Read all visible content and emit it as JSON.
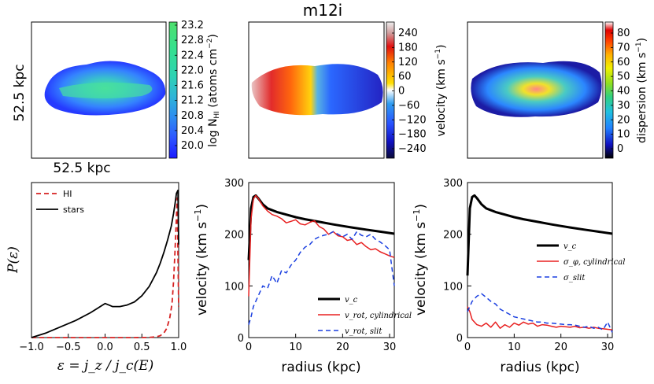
{
  "title": "m12i",
  "maps": {
    "size_label_x": "52.5 kpc",
    "size_label_y": "52.5 kpc",
    "colorbars": [
      {
        "label": "log N_HI (atoms cm^-2)",
        "label_main": "log N",
        "label_sub": "HI",
        "label_rest": " (atoms cm",
        "label_exp": "−2",
        "label_close": ")",
        "ticks": [
          "23.2",
          "22.8",
          "22.4",
          "22.0",
          "21.6",
          "21.2",
          "20.8",
          "20.4",
          "20.0"
        ],
        "colors": [
          "#1a1aff",
          "#2e56ff",
          "#2e8cf0",
          "#2eb4d8",
          "#2ed2b4",
          "#35e08f",
          "#4fe06e",
          "#4dda7a"
        ]
      },
      {
        "label": "velocity (km s^-1)",
        "label_main": "velocity (km s",
        "label_exp": "−1",
        "label_close": ")",
        "ticks": [
          "240",
          "180",
          "120",
          "60",
          "0",
          "−60",
          "−120",
          "−180",
          "−240"
        ],
        "colors": [
          "#0b0b3a",
          "#1010c0",
          "#2850ff",
          "#2e9cf0",
          "#ffffff",
          "#ffd200",
          "#ff8000",
          "#e01010",
          "#d0a0a0",
          "#eeeeee"
        ]
      },
      {
        "label": "dispersion (km s^-1)",
        "label_main": "dispersion (km s",
        "label_exp": "−1",
        "label_close": ")",
        "ticks": [
          "80",
          "70",
          "60",
          "50",
          "40",
          "30",
          "20",
          "10",
          "0"
        ],
        "colors": [
          "#000000",
          "#1010c0",
          "#2080ff",
          "#20c0e0",
          "#30d080",
          "#90e020",
          "#f0f000",
          "#ffb000",
          "#ff4000",
          "#e00000",
          "#ffffff"
        ]
      }
    ]
  },
  "chart_data": [
    {
      "type": "line",
      "title": "",
      "xlabel": "ε = j_z / j_c(E)",
      "ylabel": "P(ε)",
      "xlim": [
        -1.0,
        1.0
      ],
      "ylim": [
        0,
        1.0
      ],
      "xticks": [
        "−1.0",
        "−0.5",
        "0.0",
        "0.5",
        "1.0"
      ],
      "legend": "top-left",
      "series": [
        {
          "name": "HI",
          "color": "#d62020",
          "dash": "6,4",
          "x": [
            -1.0,
            0.4,
            0.6,
            0.7,
            0.75,
            0.8,
            0.84,
            0.88,
            0.91,
            0.93,
            0.95,
            0.97,
            0.98,
            1.0
          ],
          "y": [
            0,
            0,
            0.001,
            0.005,
            0.012,
            0.03,
            0.06,
            0.13,
            0.22,
            0.36,
            0.55,
            0.78,
            0.9,
            0.2
          ]
        },
        {
          "name": "stars",
          "color": "#000000",
          "dash": "",
          "x": [
            -1.0,
            -0.8,
            -0.6,
            -0.4,
            -0.2,
            -0.1,
            0.0,
            0.05,
            0.1,
            0.2,
            0.3,
            0.4,
            0.5,
            0.6,
            0.7,
            0.75,
            0.8,
            0.85,
            0.9,
            0.93,
            0.95,
            0.97,
            0.99,
            1.0
          ],
          "y": [
            0,
            0.03,
            0.07,
            0.11,
            0.16,
            0.19,
            0.22,
            0.21,
            0.2,
            0.2,
            0.21,
            0.23,
            0.27,
            0.33,
            0.42,
            0.48,
            0.55,
            0.63,
            0.72,
            0.8,
            0.86,
            0.93,
            0.95,
            0.6
          ]
        }
      ]
    },
    {
      "type": "line",
      "xlabel": "radius (kpc)",
      "ylabel": "velocity (km s^-1)",
      "xlim": [
        0,
        31
      ],
      "ylim": [
        0,
        300
      ],
      "xticks": [
        "0",
        "10",
        "20",
        "30"
      ],
      "yticks": [
        "0",
        "100",
        "200",
        "300"
      ],
      "legend": "bottom-right",
      "series": [
        {
          "name": "v_c",
          "color": "#000000",
          "dash": "",
          "width": 3,
          "x": [
            0,
            0.5,
            1,
            1.5,
            2,
            3,
            4,
            6,
            8,
            10,
            12,
            15,
            18,
            20,
            22,
            25,
            28,
            31
          ],
          "y": [
            150,
            250,
            272,
            275,
            270,
            258,
            250,
            243,
            238,
            233,
            229,
            224,
            219,
            216,
            213,
            209,
            205,
            201
          ]
        },
        {
          "name": "v_rot, cylindrical",
          "color": "#e82020",
          "dash": "",
          "width": 1.5,
          "x": [
            0,
            0.5,
            1,
            1.5,
            2,
            3,
            4,
            5,
            6,
            7,
            8,
            9,
            10,
            11,
            12,
            13,
            14,
            15,
            16,
            17,
            18,
            19,
            20,
            21,
            22,
            23,
            24,
            25,
            26,
            27,
            28,
            29,
            30,
            31
          ],
          "y": [
            80,
            230,
            268,
            275,
            270,
            255,
            245,
            238,
            235,
            230,
            222,
            225,
            228,
            220,
            218,
            223,
            226,
            215,
            210,
            200,
            205,
            197,
            195,
            188,
            190,
            180,
            184,
            176,
            170,
            172,
            166,
            162,
            158,
            155
          ]
        },
        {
          "name": "v_rot, slit",
          "color": "#1a3fe0",
          "dash": "6,4",
          "width": 1.5,
          "x": [
            0,
            0.5,
            1,
            2,
            3,
            4,
            5,
            6,
            7,
            8,
            9,
            10,
            11,
            12,
            13,
            14,
            15,
            16,
            17,
            18,
            19,
            20,
            21,
            22,
            23,
            24,
            25,
            26,
            27,
            28,
            29,
            30,
            31
          ],
          "y": [
            25,
            40,
            60,
            80,
            100,
            95,
            120,
            105,
            130,
            125,
            140,
            150,
            165,
            175,
            180,
            190,
            195,
            198,
            200,
            205,
            200,
            195,
            200,
            190,
            205,
            198,
            195,
            200,
            190,
            185,
            178,
            170,
            100
          ]
        }
      ]
    },
    {
      "type": "line",
      "xlabel": "radius (kpc)",
      "ylabel": "velocity (km s^-1)",
      "xlim": [
        0,
        31
      ],
      "ylim": [
        0,
        300
      ],
      "xticks": [
        "0",
        "10",
        "20",
        "30"
      ],
      "yticks": [
        "0",
        "100",
        "200",
        "300"
      ],
      "legend": "middle-right",
      "series": [
        {
          "name": "v_c",
          "color": "#000000",
          "dash": "",
          "width": 3,
          "x": [
            0,
            0.5,
            1,
            1.5,
            2,
            3,
            4,
            6,
            8,
            10,
            12,
            15,
            18,
            20,
            22,
            25,
            28,
            31
          ],
          "y": [
            120,
            250,
            272,
            275,
            270,
            258,
            250,
            243,
            238,
            233,
            229,
            224,
            219,
            216,
            213,
            209,
            205,
            201
          ]
        },
        {
          "name": "σ_φ, cylindrical",
          "color": "#e82020",
          "dash": "",
          "width": 1.5,
          "x": [
            0,
            0.5,
            1,
            2,
            3,
            4,
            5,
            6,
            7,
            8,
            9,
            10,
            11,
            12,
            13,
            14,
            15,
            16,
            17,
            18,
            19,
            20,
            21,
            22,
            23,
            24,
            25,
            26,
            27,
            28,
            29,
            30,
            31
          ],
          "y": [
            60,
            50,
            35,
            25,
            22,
            28,
            20,
            30,
            18,
            25,
            20,
            28,
            24,
            30,
            26,
            28,
            22,
            25,
            24,
            22,
            20,
            22,
            21,
            20,
            22,
            19,
            20,
            18,
            20,
            18,
            17,
            16,
            15
          ]
        },
        {
          "name": "σ_slit",
          "color": "#1a3fe0",
          "dash": "6,4",
          "width": 1.5,
          "x": [
            0,
            0.5,
            1,
            2,
            3,
            4,
            5,
            6,
            7,
            8,
            9,
            10,
            11,
            12,
            13,
            14,
            15,
            16,
            17,
            18,
            19,
            20,
            21,
            22,
            23,
            24,
            25,
            26,
            27,
            28,
            29,
            30,
            31
          ],
          "y": [
            50,
            60,
            70,
            80,
            85,
            78,
            70,
            65,
            55,
            50,
            45,
            40,
            38,
            36,
            34,
            32,
            30,
            30,
            28,
            28,
            27,
            26,
            25,
            25,
            24,
            22,
            20,
            22,
            18,
            20,
            15,
            30,
            10
          ]
        }
      ]
    }
  ]
}
